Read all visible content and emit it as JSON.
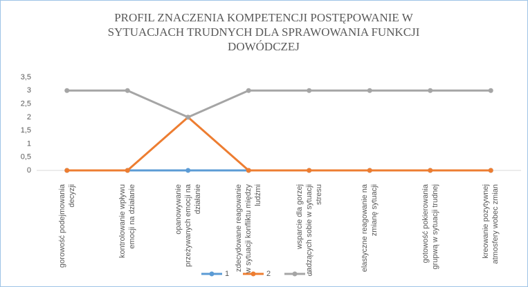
{
  "chart_data": {
    "type": "line",
    "title": "PROFIL ZNACZENIA KOMPETENCJI POSTĘPOWANIE W SYTUACJACH TRUDNYCH DLA SPRAWOWANIA FUNKCJI DOWÓDCZEJ",
    "categories": [
      "gorowość podejmowania decyzji",
      "kontrolowanie wpływu emocji na działanie",
      "opanowywanie przeżywanych emocji na działanie",
      "zdecydowane reagowanie w sytuacji konfliktu między ludźmi",
      "wsparcie dla gorzej radzących sobie w sytuacji stresu",
      "elastyczne reagowanie na zmianę sytuacji",
      "gotowość pokierowania grupwą w sytuacji trudnej",
      "kreowanie pozytywnej atmosfery wobec zmian"
    ],
    "series": [
      {
        "name": "1",
        "color": "#5b9bd5",
        "values": [
          0,
          0,
          0,
          0,
          0,
          0,
          0,
          0
        ]
      },
      {
        "name": "2",
        "color": "#ed7d31",
        "values": [
          0,
          0,
          2,
          0,
          0,
          0,
          0,
          0
        ]
      },
      {
        "name": "3",
        "color": "#a5a5a5",
        "values": [
          3,
          3,
          2,
          3,
          3,
          3,
          3,
          3
        ]
      }
    ],
    "ylim": [
      0,
      3.5
    ],
    "yticks": [
      0,
      {
        "value": 0.5,
        "label": "0,5"
      },
      1,
      {
        "value": 1.5,
        "label": "1,5"
      },
      2,
      {
        "value": 2.5,
        "label": "2,5"
      },
      3,
      {
        "value": 3.5,
        "label": "3,5"
      }
    ],
    "grid": false,
    "legend": "bottom"
  }
}
